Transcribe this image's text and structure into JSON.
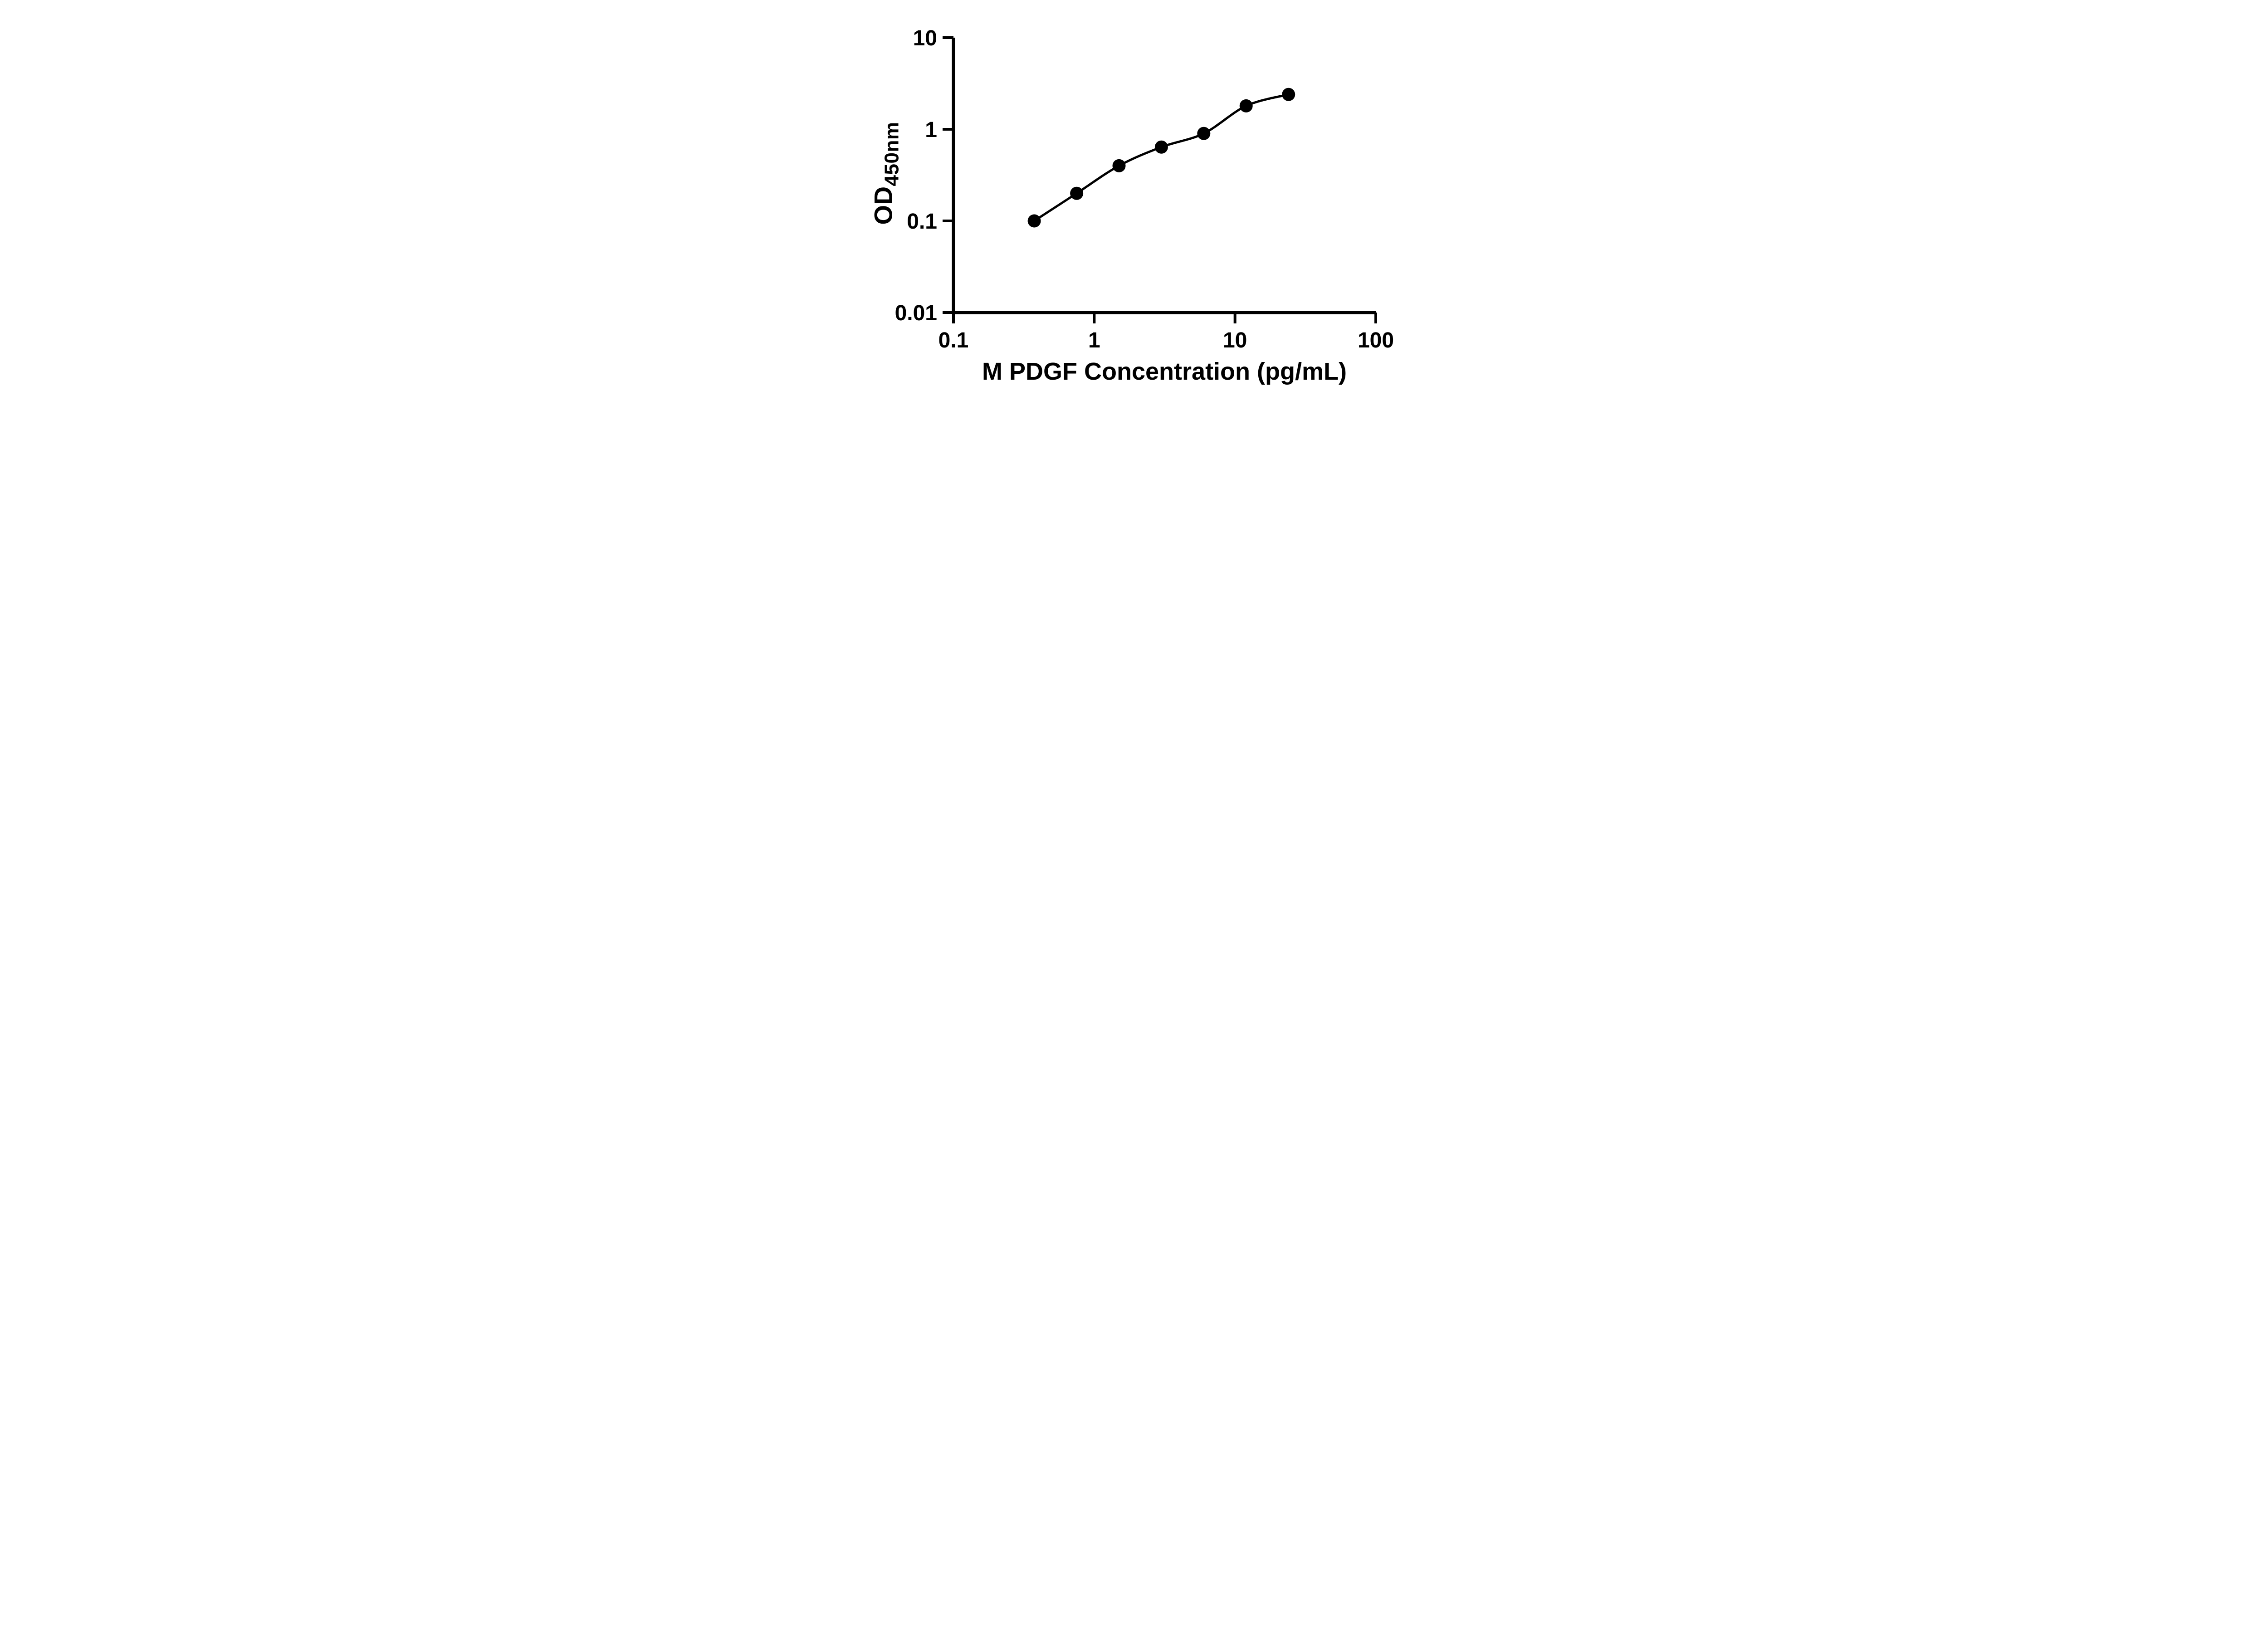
{
  "figure": {
    "background": "#ffffff"
  },
  "chart_data": {
    "type": "scatter",
    "title": "",
    "xlabel": "M PDGF Concentration (pg/mL)",
    "ylabel": "OD450nm",
    "ylabel_base": "OD",
    "ylabel_subscript": "450nm",
    "xscale": "log",
    "yscale": "log",
    "xlim": [
      0.1,
      100
    ],
    "ylim": [
      0.01,
      10
    ],
    "x_ticks": [
      0.1,
      1,
      10,
      100
    ],
    "x_tick_labels": [
      "0.1",
      "1",
      "10",
      "100"
    ],
    "y_ticks": [
      0.01,
      0.1,
      1,
      10
    ],
    "y_tick_labels": [
      "0.01",
      "0.1",
      "1",
      "10"
    ],
    "grid": "off",
    "legend": "none",
    "curve": "smooth 4PL fit through points, from first to last point",
    "points": {
      "x": [
        0.375,
        0.75,
        1.5,
        3,
        6,
        12,
        24
      ],
      "y": [
        0.1,
        0.2,
        0.4,
        0.64,
        0.9,
        1.8,
        2.4
      ]
    },
    "colors": {
      "marker": "#000000",
      "line": "#000000",
      "axis": "#000000",
      "text": "#000000"
    }
  }
}
